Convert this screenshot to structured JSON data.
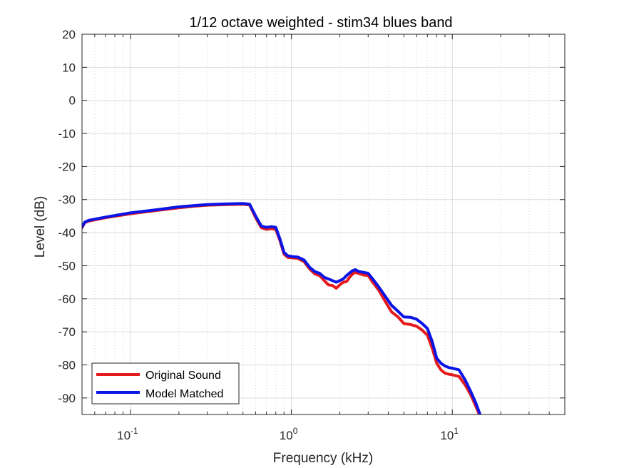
{
  "chart_data": {
    "type": "line",
    "title": "1/12 octave weighted - stim34 blues band",
    "xlabel": "Frequency (kHz)",
    "ylabel": "Level (dB)",
    "xscale": "log",
    "xlim": [
      0.05,
      50
    ],
    "ylim": [
      -95,
      20
    ],
    "x_ticks": [
      {
        "value": 0.1,
        "base": "10",
        "exp": "-1"
      },
      {
        "value": 1,
        "base": "10",
        "exp": "0"
      },
      {
        "value": 10,
        "base": "10",
        "exp": "1"
      }
    ],
    "y_ticks": [
      20,
      10,
      0,
      -10,
      -20,
      -30,
      -40,
      -50,
      -60,
      -70,
      -80,
      -90
    ],
    "grid": true,
    "minor_grid": true,
    "legend_position": "bottom-left",
    "series": [
      {
        "name": "Original Sound",
        "color": "#e41a1c",
        "x": [
          0.05,
          0.052,
          0.055,
          0.07,
          0.1,
          0.15,
          0.2,
          0.25,
          0.3,
          0.4,
          0.5,
          0.55,
          0.6,
          0.65,
          0.7,
          0.75,
          0.8,
          0.85,
          0.9,
          0.95,
          1.0,
          1.1,
          1.2,
          1.3,
          1.4,
          1.5,
          1.6,
          1.7,
          1.8,
          1.9,
          2.0,
          2.1,
          2.2,
          2.3,
          2.4,
          2.5,
          2.6,
          2.8,
          3.0,
          3.2,
          3.5,
          3.8,
          4.2,
          4.6,
          5.0,
          5.5,
          6.0,
          6.5,
          7.0,
          7.5,
          8.0,
          8.5,
          9.0,
          9.5,
          10.0,
          11.0,
          12.0,
          13.0,
          14.0,
          15.0
        ],
        "y": [
          -38.5,
          -37,
          -36.5,
          -35.5,
          -34.3,
          -33.2,
          -32.5,
          -32.0,
          -31.7,
          -31.5,
          -31.4,
          -31.6,
          -35.5,
          -38.5,
          -39.0,
          -38.8,
          -39.0,
          -42.5,
          -46.5,
          -47.5,
          -47.6,
          -47.8,
          -48.8,
          -51.0,
          -52.5,
          -53.0,
          -54.5,
          -55.8,
          -56.0,
          -56.8,
          -55.8,
          -55.0,
          -54.8,
          -53.5,
          -52.5,
          -52.0,
          -52.3,
          -52.8,
          -53.0,
          -55.0,
          -57.5,
          -60.5,
          -64.0,
          -65.5,
          -67.5,
          -67.8,
          -68.3,
          -69.5,
          -71.0,
          -75.0,
          -79.5,
          -81.5,
          -82.5,
          -82.8,
          -83.0,
          -83.5,
          -86.0,
          -89.0,
          -92.5,
          -96.0
        ]
      },
      {
        "name": "Model Matched",
        "color": "#0a14e6",
        "x": [
          0.05,
          0.052,
          0.055,
          0.07,
          0.1,
          0.15,
          0.2,
          0.25,
          0.3,
          0.4,
          0.5,
          0.55,
          0.6,
          0.65,
          0.7,
          0.75,
          0.8,
          0.85,
          0.9,
          0.95,
          1.0,
          1.1,
          1.2,
          1.3,
          1.4,
          1.5,
          1.6,
          1.7,
          1.8,
          1.9,
          2.0,
          2.1,
          2.2,
          2.3,
          2.4,
          2.5,
          2.6,
          2.8,
          3.0,
          3.2,
          3.5,
          3.8,
          4.2,
          4.6,
          5.0,
          5.5,
          6.0,
          6.5,
          7.0,
          7.5,
          8.0,
          8.5,
          9.0,
          9.5,
          10.0,
          11.0,
          12.0,
          13.0,
          14.0,
          15.0
        ],
        "y": [
          -38.3,
          -36.8,
          -36.3,
          -35.3,
          -34.0,
          -33.0,
          -32.2,
          -31.8,
          -31.5,
          -31.3,
          -31.2,
          -31.4,
          -35.0,
          -38.0,
          -38.4,
          -38.2,
          -38.4,
          -42.0,
          -46.0,
          -47.0,
          -47.2,
          -47.4,
          -48.3,
          -50.5,
          -51.8,
          -52.3,
          -53.5,
          -54.0,
          -54.5,
          -55.0,
          -54.5,
          -54.0,
          -53.0,
          -52.2,
          -51.5,
          -51.2,
          -51.7,
          -52.0,
          -52.3,
          -54.0,
          -56.5,
          -59.0,
          -62.0,
          -63.8,
          -65.5,
          -65.6,
          -66.2,
          -67.5,
          -69.0,
          -73.0,
          -78.0,
          -79.5,
          -80.3,
          -80.8,
          -81.0,
          -81.5,
          -84.5,
          -88.0,
          -91.5,
          -95.5
        ]
      }
    ]
  }
}
